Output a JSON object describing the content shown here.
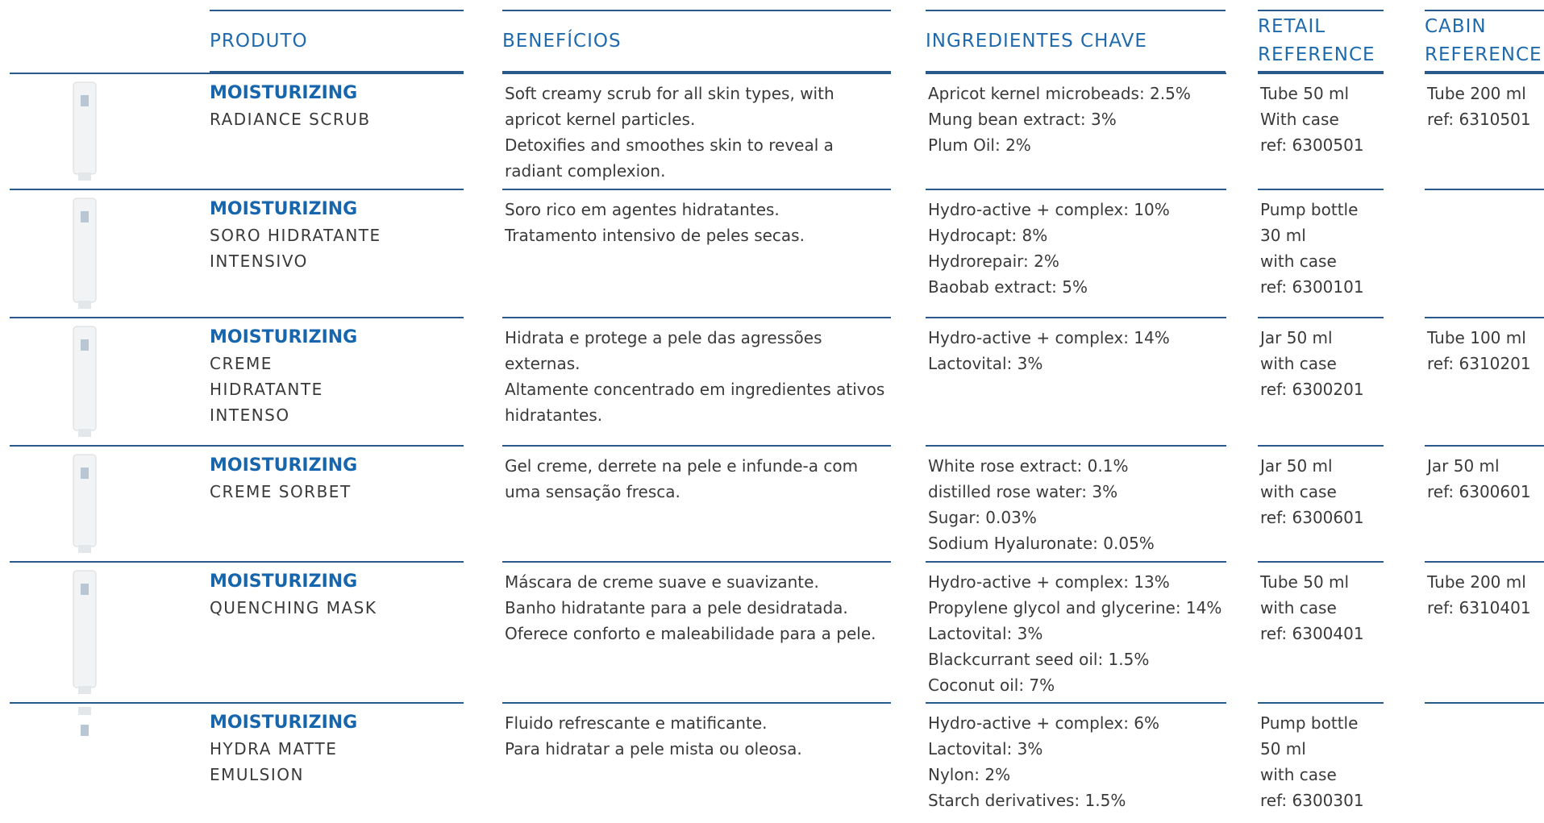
{
  "header": [
    "PRODUTO",
    "BENEFÍCIOS",
    "INGREDIENTES CHAVE",
    "RETAIL REFERENCE",
    "CABIN REFERENCE"
  ],
  "rows": [
    {
      "brand": "MOISTURIZING",
      "name": "RADIANCE SCRUB",
      "benefits": [
        "Soft creamy scrub for all skin types, with apricot kernel particles.",
        "Detoxifies and smoothes skin to reveal a radiant complexion."
      ],
      "ingredients": [
        "Apricot kernel microbeads: 2.5%",
        "Mung bean extract: 3%",
        "Plum Oil: 2%"
      ],
      "retail": [
        "Tube 50 ml",
        "With case",
        "ref: 6300501"
      ],
      "cabin": [
        "Tube 200 ml",
        "ref: 6310501"
      ]
    },
    {
      "brand": "MOISTURIZING",
      "name": "SORO HIDRATANTE INTENSIVO",
      "benefits": [
        "Soro rico em agentes hidratantes.",
        "Tratamento intensivo de peles secas."
      ],
      "ingredients": [
        "Hydro-active + complex: 10%",
        "Hydrocapt: 8%",
        "Hydrorepair: 2%",
        "Baobab extract: 5%"
      ],
      "retail": [
        "Pump bottle",
        "30 ml",
        "with case",
        "ref: 6300101"
      ],
      "cabin": []
    },
    {
      "brand": "MOISTURIZING",
      "name": "CREME HIDRATANTE INTENSO",
      "benefits": [
        "Hidrata e protege a pele das agressões externas.",
        "Altamente concentrado em ingredientes ativos hidratantes."
      ],
      "ingredients": [
        "Hydro-active + complex: 14%",
        "Lactovital: 3%"
      ],
      "retail": [
        "Jar 50 ml",
        "with case",
        "ref: 6300201"
      ],
      "cabin": [
        "Tube 100 ml",
        "ref: 6310201"
      ]
    },
    {
      "brand": "MOISTURIZING",
      "name": "CREME SORBET",
      "benefits": [
        "Gel creme, derrete na pele e infunde-a com uma sensação fresca."
      ],
      "ingredients": [
        "White rose extract: 0.1%",
        "distilled rose water: 3%",
        "Sugar: 0.03%",
        "Sodium Hyaluronate: 0.05%"
      ],
      "retail": [
        "Jar 50 ml",
        "with case",
        "ref: 6300601"
      ],
      "cabin": [
        "Jar 50 ml",
        "ref: 6300601"
      ]
    },
    {
      "brand": "MOISTURIZING",
      "name": "QUENCHING MASK",
      "benefits": [
        "Máscara de creme suave e suavizante.",
        "Banho hidratante para a pele desidratada.",
        "Oferece conforto e maleabilidade para a pele."
      ],
      "ingredients": [
        "Hydro-active + complex: 13%",
        "Propylene glycol and glycerine: 14%",
        "Lactovital: 3%",
        "Blackcurrant seed oil: 1.5%",
        "Coconut oil: 7%"
      ],
      "retail": [
        "Tube 50 ml",
        "with case",
        "ref: 6300401"
      ],
      "cabin": [
        "Tube 200 ml",
        "ref: 6310401"
      ]
    },
    {
      "brand": "MOISTURIZING",
      "name": "HYDRA MATTE EMULSION",
      "benefits": [
        "Fluido refrescante e matificante.",
        "Para hidratar a pele mista ou oleosa."
      ],
      "ingredients": [
        "Hydro-active + complex: 6%",
        "Lactovital: 3%",
        "Nylon: 2%",
        "Starch derivatives: 1.5%"
      ],
      "retail": [
        "Pump bottle",
        "50 ml",
        "with case",
        "ref: 6300301"
      ],
      "cabin": []
    }
  ]
}
